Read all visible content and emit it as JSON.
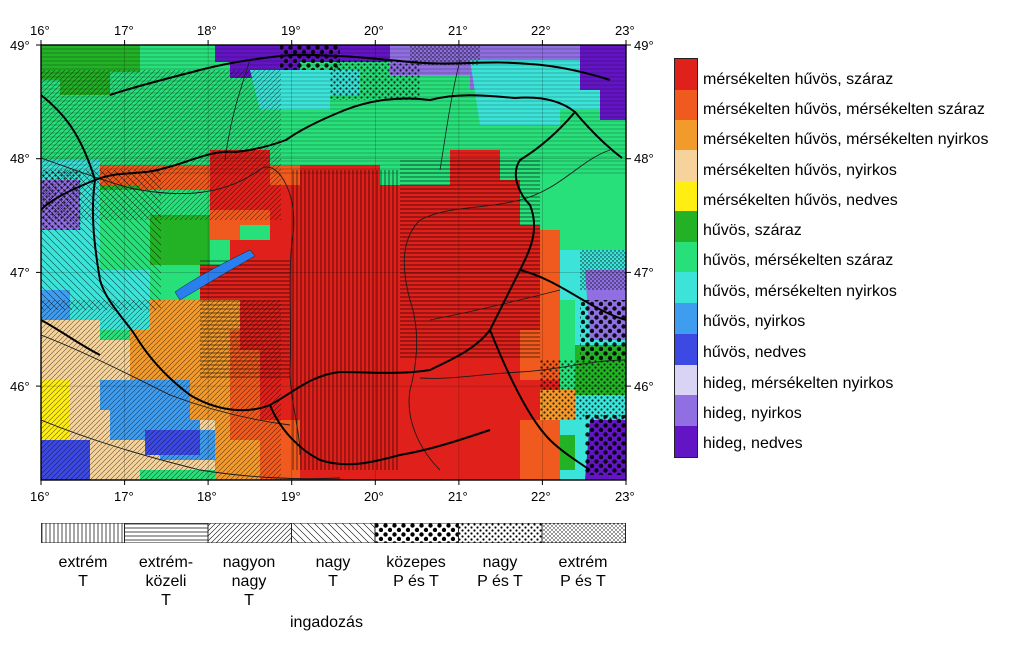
{
  "map": {
    "lon_ticks": [
      "16°",
      "17°",
      "18°",
      "19°",
      "20°",
      "21°",
      "22°",
      "23°"
    ],
    "lat_ticks": [
      "49°",
      "48°",
      "47°",
      "46°"
    ],
    "colors": {
      "mersekelten_huvos_szaraz": "#e0201a",
      "mersekelten_huvos_mersekelten_szaraz": "#f05a1e",
      "mersekelten_huvos_mersekelten_nyirkos": "#f39a2c",
      "mersekelten_huvos_nyirkos": "#f6d39a",
      "mersekelten_huvos_nedves": "#ffee12",
      "huvos_szaraz": "#23b226",
      "huvos_mersekelten_szaraz": "#28e07a",
      "huvos_mersekelten_nyirkos": "#3be3d8",
      "huvos_nyirkos": "#3f9df0",
      "huvos_nedves": "#3c4ae3",
      "hideg_mersekelten_nyirkos": "#d9d4f3",
      "hideg_nyirkos": "#8f6fe1",
      "hideg_nedves": "#6314c4"
    }
  },
  "legend": {
    "items": [
      {
        "label": "mérsékelten hűvös, száraz",
        "color": "#e0201a"
      },
      {
        "label": "mérsékelten hűvös, mérsékelten száraz",
        "color": "#f05a1e"
      },
      {
        "label": "mérsékelten hűvös, mérsékelten nyirkos",
        "color": "#f39a2c"
      },
      {
        "label": "mérsékelten hűvös, nyirkos",
        "color": "#f6d39a"
      },
      {
        "label": "mérsékelten hűvös, nedves",
        "color": "#ffee12"
      },
      {
        "label": "hűvös, száraz",
        "color": "#23b226"
      },
      {
        "label": "hűvös, mérsékelten száraz",
        "color": "#28e07a"
      },
      {
        "label": "hűvös, mérsékelten nyirkos",
        "color": "#3be3d8"
      },
      {
        "label": "hűvös, nyirkos",
        "color": "#3f9df0"
      },
      {
        "label": "hűvös, nedves",
        "color": "#3c4ae3"
      },
      {
        "label": "hideg, mérsékelten nyirkos",
        "color": "#d9d4f3"
      },
      {
        "label": "hideg, nyirkos",
        "color": "#8f6fe1"
      },
      {
        "label": "hideg, nedves",
        "color": "#6314c4"
      }
    ]
  },
  "variability": {
    "items": [
      {
        "label_lines": [
          "extrém",
          "T"
        ],
        "pattern": "vertical-lines"
      },
      {
        "label_lines": [
          "extrém-",
          "közeli",
          "T"
        ],
        "pattern": "horizontal-lines"
      },
      {
        "label_lines": [
          "nagyon",
          "nagy",
          "T"
        ],
        "pattern": "diagonal-dense"
      },
      {
        "label_lines": [
          "nagy",
          "T"
        ],
        "pattern": "diagonal-sparse"
      },
      {
        "label_lines": [
          "közepes",
          "P és T"
        ],
        "pattern": "dots-large"
      },
      {
        "label_lines": [
          "nagy",
          "P és T"
        ],
        "pattern": "dots-small"
      },
      {
        "label_lines": [
          "extrém",
          "P és T"
        ],
        "pattern": "dots-fine"
      }
    ],
    "caption": "ingadozás"
  }
}
